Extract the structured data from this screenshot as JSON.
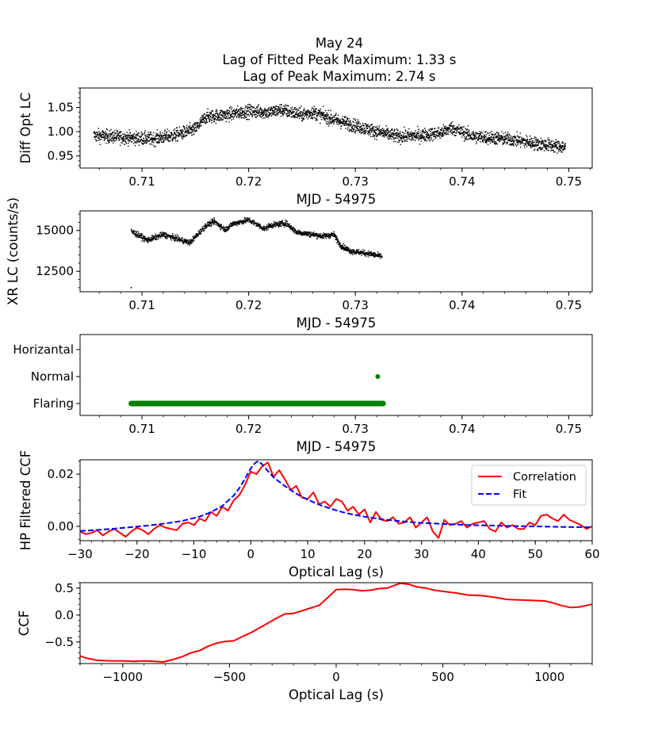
{
  "figure": {
    "title_lines": [
      "May 24",
      "Lag of Fitted Peak Maximum: 1.33 s",
      "Lag of Peak Maximum: 2.74 s"
    ]
  },
  "chart_data": [
    {
      "id": "opt",
      "type": "scatter",
      "title": "",
      "xlabel": "MJD - 54975",
      "ylabel": "Diff Opt LC",
      "xlim": [
        0.7042,
        0.7522
      ],
      "ylim": [
        0.925,
        1.09
      ],
      "xticks": [
        0.71,
        0.72,
        0.73,
        0.74,
        0.75
      ],
      "xtick_labels": [
        "0.71",
        "0.72",
        "0.73",
        "0.74",
        "0.75"
      ],
      "yticks": [
        0.95,
        1.0,
        1.05
      ],
      "ytick_labels": [
        "0.95",
        "1.00",
        "1.05"
      ],
      "color": "#000000",
      "trend": {
        "x": [
          0.7055,
          0.707,
          0.709,
          0.711,
          0.713,
          0.715,
          0.716,
          0.718,
          0.72,
          0.722,
          0.723,
          0.725,
          0.726,
          0.728,
          0.73,
          0.732,
          0.734,
          0.736,
          0.738,
          0.739,
          0.741,
          0.743,
          0.745,
          0.747,
          0.7497
        ],
        "y": [
          0.992,
          0.99,
          0.987,
          0.985,
          0.992,
          1.005,
          1.03,
          1.035,
          1.042,
          1.04,
          1.045,
          1.035,
          1.04,
          1.025,
          1.012,
          1.0,
          0.99,
          0.992,
          0.997,
          1.008,
          0.99,
          0.987,
          0.983,
          0.975,
          0.968
        ]
      },
      "scatter_amplitude": 0.012,
      "n_points": 3000
    },
    {
      "id": "xr",
      "type": "scatter",
      "xlabel": "MJD - 54975",
      "ylabel": "XR LC (counts/s)",
      "xlim": [
        0.7042,
        0.7522
      ],
      "ylim": [
        11250,
        16200
      ],
      "xticks": [
        0.71,
        0.72,
        0.73,
        0.74,
        0.75
      ],
      "xtick_labels": [
        "0.71",
        "0.72",
        "0.73",
        "0.74",
        "0.75"
      ],
      "yticks": [
        12500,
        15000
      ],
      "ytick_labels": [
        "12500",
        "15000"
      ],
      "color": "#000000",
      "trend": {
        "x": [
          0.709,
          0.71,
          0.7105,
          0.712,
          0.7135,
          0.7145,
          0.716,
          0.7168,
          0.7178,
          0.7185,
          0.72,
          0.7215,
          0.722,
          0.7235,
          0.7245,
          0.7255,
          0.727,
          0.728,
          0.7286,
          0.7295,
          0.7315,
          0.7325
        ],
        "y": [
          14950,
          14600,
          14400,
          14750,
          14450,
          14250,
          15300,
          15550,
          15050,
          15400,
          15650,
          15100,
          15300,
          15450,
          14900,
          14800,
          14650,
          14750,
          14100,
          13750,
          13550,
          13400
        ]
      },
      "scatter_amplitude": 150,
      "n_points": 1500,
      "outlier": {
        "x": 0.709,
        "y": 11500
      }
    },
    {
      "id": "state",
      "type": "scatter",
      "xlabel": "MJD - 54975",
      "ylabel": "",
      "xlim": [
        0.7042,
        0.7522
      ],
      "categories": [
        "Flaring",
        "Normal",
        "Horizantal"
      ],
      "xticks": [
        0.71,
        0.72,
        0.73,
        0.74,
        0.75
      ],
      "xtick_labels": [
        "0.71",
        "0.72",
        "0.73",
        "0.74",
        "0.75"
      ],
      "color": "#008000",
      "flaring_range": [
        0.709,
        0.7326
      ],
      "normal_points": [
        0.7321
      ]
    },
    {
      "id": "hpccf",
      "type": "line",
      "xlabel": "Optical Lag (s)",
      "ylabel": "HP Filtered CCF",
      "xlim": [
        -30,
        60
      ],
      "ylim": [
        -0.0055,
        0.0255
      ],
      "xticks": [
        -30,
        -20,
        -10,
        0,
        10,
        20,
        30,
        40,
        50,
        60
      ],
      "xtick_labels": [
        "−30",
        "−20",
        "−10",
        "0",
        "10",
        "20",
        "30",
        "40",
        "50",
        "60"
      ],
      "yticks": [
        0.0,
        0.02
      ],
      "ytick_labels": [
        "0.00",
        "0.02"
      ],
      "legend": {
        "position": "top-right",
        "entries": [
          "Correlation",
          "Fit"
        ]
      },
      "series": [
        {
          "name": "Correlation",
          "color": "#ff0000",
          "style": "solid",
          "x": [
            -30,
            -29,
            -28,
            -27,
            -26,
            -25,
            -24,
            -23,
            -22,
            -21,
            -20,
            -19,
            -18,
            -17,
            -16,
            -15,
            -14,
            -13,
            -12,
            -11,
            -10,
            -9,
            -8,
            -7,
            -6,
            -5,
            -4,
            -3,
            -2,
            -1,
            0,
            1,
            2,
            3,
            4,
            5,
            6,
            7,
            8,
            9,
            10,
            11,
            12,
            13,
            14,
            15,
            16,
            17,
            18,
            19,
            20,
            21,
            22,
            23,
            24,
            25,
            26,
            27,
            28,
            29,
            30,
            31,
            32,
            33,
            34,
            35,
            36,
            37,
            38,
            39,
            40,
            41,
            42,
            43,
            44,
            45,
            46,
            47,
            48,
            49,
            50,
            51,
            52,
            53,
            54,
            55,
            56,
            57,
            58,
            59,
            60
          ],
          "values": [
            -0.002,
            -0.003,
            -0.0025,
            -0.0015,
            -0.0035,
            -0.002,
            -0.001,
            -0.0025,
            -0.004,
            -0.002,
            -0.0005,
            -0.0015,
            -0.003,
            -0.001,
            0.0005,
            -0.0005,
            -0.001,
            -0.0015,
            0.001,
            0.0015,
            0.0005,
            0.003,
            0.002,
            0.0055,
            0.004,
            0.0075,
            0.006,
            0.01,
            0.012,
            0.016,
            0.021,
            0.02,
            0.023,
            0.0245,
            0.019,
            0.0215,
            0.018,
            0.014,
            0.0155,
            0.011,
            0.0105,
            0.013,
            0.0085,
            0.0095,
            0.0075,
            0.0105,
            0.0095,
            0.006,
            0.0075,
            0.0045,
            0.0065,
            0.0015,
            0.0055,
            0.0025,
            0.002,
            0.0035,
            0.001,
            0.0015,
            0.0035,
            -0.0005,
            0.0015,
            0.0035,
            -0.002,
            -0.0045,
            0.0025,
            0.0005,
            0.001,
            0.002,
            -0.0005,
            0.001,
            0.0015,
            0.002,
            -0.001,
            -0.002,
            0.0015,
            -0.0005,
            0.0005,
            -0.001,
            -0.001,
            0.0015,
            0.0005,
            0.004,
            0.0045,
            0.003,
            0.002,
            0.0045,
            0.0025,
            0.0015,
            0.0005,
            -0.001,
            0.0
          ]
        },
        {
          "name": "Fit",
          "color": "#0000ff",
          "style": "dashed",
          "x": [
            -30,
            -27,
            -24,
            -21,
            -18,
            -15,
            -12,
            -9,
            -7,
            -5,
            -3,
            -2,
            -1,
            0,
            0.7,
            1.33,
            2,
            3,
            4,
            6,
            8,
            10,
            12,
            14,
            16,
            18,
            20,
            23,
            26,
            30,
            34,
            38,
            42,
            46,
            50,
            54,
            57,
            60
          ],
          "values": [
            -0.0018,
            -0.0014,
            -0.0009,
            -0.0003,
            0.0003,
            0.0011,
            0.0021,
            0.0037,
            0.0054,
            0.0078,
            0.0118,
            0.0147,
            0.0183,
            0.0222,
            0.0242,
            0.025,
            0.0238,
            0.0212,
            0.0188,
            0.0154,
            0.0125,
            0.0102,
            0.0083,
            0.0068,
            0.0055,
            0.0045,
            0.0037,
            0.0027,
            0.002,
            0.0013,
            0.0009,
            0.0005,
            0.0003,
            0.0001,
            0.0,
            -0.0002,
            -0.0003,
            -0.0004
          ]
        }
      ]
    },
    {
      "id": "ccf",
      "type": "line",
      "xlabel": "Optical Lag (s)",
      "ylabel": "CCF",
      "xlim": [
        -1200,
        1200
      ],
      "ylim": [
        -0.9,
        0.6
      ],
      "xticks": [
        -1000,
        -500,
        0,
        500,
        1000
      ],
      "xtick_labels": [
        "−1000",
        "−500",
        "0",
        "500",
        "1000"
      ],
      "yticks": [
        -0.5,
        0.0,
        0.5
      ],
      "ytick_labels": [
        "−0.5",
        "0.0",
        "0.5"
      ],
      "series": [
        {
          "name": "CCF",
          "color": "#ff0000",
          "x": [
            -1200,
            -1170,
            -1120,
            -1060,
            -1000,
            -950,
            -900,
            -850,
            -810,
            -780,
            -760,
            -720,
            -680,
            -640,
            -600,
            -560,
            -520,
            -480,
            -440,
            -400,
            -360,
            -320,
            -280,
            -240,
            -200,
            -160,
            -120,
            -80,
            -40,
            0,
            40,
            80,
            120,
            160,
            200,
            240,
            280,
            300,
            340,
            380,
            420,
            460,
            500,
            560,
            620,
            680,
            740,
            800,
            860,
            920,
            980,
            1020,
            1060,
            1100,
            1140,
            1200
          ],
          "values": [
            -0.76,
            -0.8,
            -0.84,
            -0.85,
            -0.85,
            -0.86,
            -0.85,
            -0.86,
            -0.87,
            -0.84,
            -0.82,
            -0.77,
            -0.7,
            -0.66,
            -0.58,
            -0.52,
            -0.49,
            -0.48,
            -0.4,
            -0.33,
            -0.24,
            -0.15,
            -0.06,
            0.02,
            0.03,
            0.08,
            0.13,
            0.18,
            0.32,
            0.47,
            0.48,
            0.47,
            0.45,
            0.46,
            0.49,
            0.5,
            0.56,
            0.59,
            0.57,
            0.52,
            0.5,
            0.46,
            0.44,
            0.41,
            0.37,
            0.36,
            0.33,
            0.29,
            0.28,
            0.27,
            0.26,
            0.22,
            0.17,
            0.14,
            0.15,
            0.2
          ]
        }
      ]
    }
  ]
}
